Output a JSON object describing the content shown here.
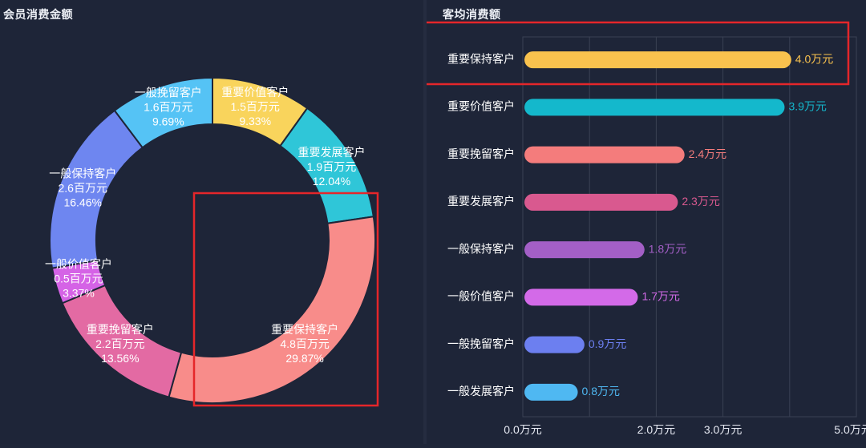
{
  "left_panel": {
    "title": "会员消费金额"
  },
  "right_panel": {
    "title": "客均消费额"
  },
  "colors": {
    "background": "#1e2538",
    "highlight_box": "#e5262a",
    "grid": "#3a4154"
  },
  "chart_data": [
    {
      "type": "pie",
      "title": "会员消费金额",
      "slices": [
        {
          "label": "重要价值客户",
          "value_text": "1.5百万元",
          "value": 1.5,
          "percent": 9.33,
          "percent_text": "9.33%",
          "color": "#f9d45c"
        },
        {
          "label": "重要发展客户",
          "value_text": "1.9百万元",
          "value": 1.9,
          "percent": 12.04,
          "percent_text": "12.04%",
          "color": "#2fc6d8"
        },
        {
          "label": "重要保持客户",
          "value_text": "4.8百万元",
          "value": 4.8,
          "percent": 29.87,
          "percent_text": "29.87%",
          "color": "#f88c8a"
        },
        {
          "label": "重要挽留客户",
          "value_text": "2.2百万元",
          "value": 2.2,
          "percent": 13.56,
          "percent_text": "13.56%",
          "color": "#e36aa3"
        },
        {
          "label": "一般价值客户",
          "value_text": "0.5百万元",
          "value": 0.5,
          "percent": 3.37,
          "percent_text": "3.37%",
          "color": "#d563e6"
        },
        {
          "label": "一般保持客户",
          "value_text": "2.6百万元",
          "value": 2.6,
          "percent": 16.46,
          "percent_text": "16.46%",
          "color": "#6e86f0"
        },
        {
          "label": "一般挽留客户",
          "value_text": "1.6百万元",
          "value": 1.6,
          "percent": 9.69,
          "percent_text": "9.69%",
          "color": "#55c3f5"
        }
      ],
      "highlighted": "重要保持客户"
    },
    {
      "type": "bar",
      "orientation": "horizontal",
      "title": "客均消费额",
      "categories": [
        "重要保持客户",
        "重要价值客户",
        "重要挽留客户",
        "重要发展客户",
        "一般保持客户",
        "一般价值客户",
        "一般挽留客户",
        "一般发展客户"
      ],
      "values": [
        4.0,
        3.9,
        2.4,
        2.3,
        1.8,
        1.7,
        0.9,
        0.8
      ],
      "value_labels": [
        "4.0万元",
        "3.9万元",
        "2.4万元",
        "2.3万元",
        "1.8万元",
        "1.7万元",
        "0.9万元",
        "0.8万元"
      ],
      "bar_colors": [
        "#f9c24e",
        "#14b8cc",
        "#f47c7c",
        "#d9598f",
        "#a35fc6",
        "#d36ae8",
        "#6c7ff0",
        "#4fb8f2"
      ],
      "xlim": [
        0,
        5
      ],
      "x_ticks": [
        0,
        2,
        3,
        5
      ],
      "x_tick_labels": [
        "0.0万元",
        "2.0万元",
        "3.0万元",
        "5.0万元"
      ],
      "grid": true,
      "highlighted": "重要保持客户"
    }
  ]
}
